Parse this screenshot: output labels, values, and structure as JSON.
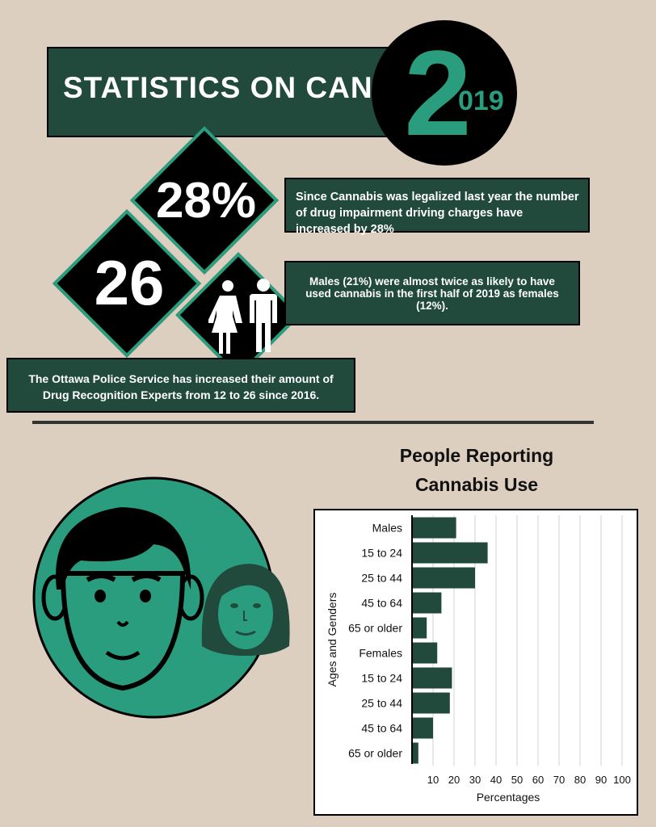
{
  "header": {
    "title": "STATISTICS ON CANNABIS",
    "year_big": "2",
    "year_small": "019"
  },
  "stats": {
    "charges_increase": "28%",
    "experts_count": "26"
  },
  "facts": {
    "charges": "Since Cannabis was legalized last year the number of drug impairment driving charges have increased by 28%",
    "gender": "Males (21%) were almost twice as likely to have used cannabis in the first half of 2019 as females (12%).",
    "police": "The Ottawa Police Service has increased their amount of Drug Recognition Experts from 12 to 26 since 2016."
  },
  "colors": {
    "background": "#dccfc0",
    "dark_green": "#214a3c",
    "teal": "#2a9d7e",
    "bar": "#214a3c"
  },
  "icons": [
    "female-person-icon",
    "male-person-icon",
    "boy-face-icon",
    "woman-face-icon"
  ],
  "chart_data": {
    "type": "bar",
    "orientation": "horizontal",
    "title": "People Reporting Cannabis Use",
    "xlabel": "Percentages",
    "ylabel": "Ages and Genders",
    "xlim": [
      0,
      100
    ],
    "x_ticks": [
      "10",
      "20",
      "30",
      "40",
      "50",
      "60",
      "70",
      "80",
      "90",
      "100"
    ],
    "categories": [
      "Males",
      "15 to 24",
      "25 to 44",
      "45 to 64",
      "65 or older",
      "Females",
      "15 to 24",
      "25 to 44",
      "45 to 64",
      "65 or older"
    ],
    "values": [
      21,
      36,
      30,
      14,
      7,
      12,
      19,
      18,
      10,
      3
    ],
    "grid": true
  }
}
